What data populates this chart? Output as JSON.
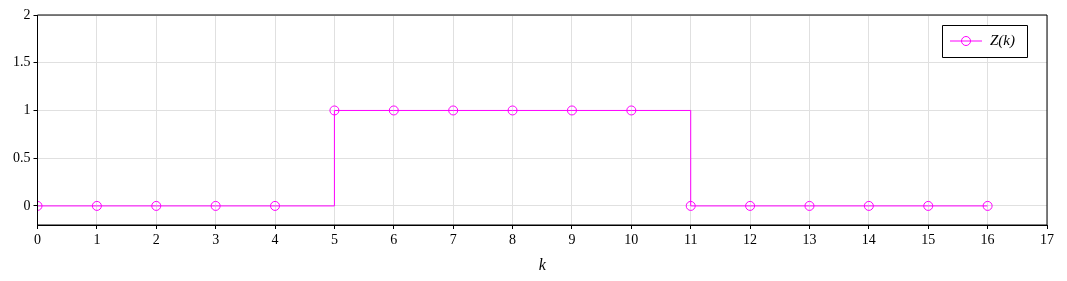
{
  "chart_data": {
    "type": "step",
    "xlabel": "k",
    "x": [
      0,
      1,
      2,
      3,
      4,
      5,
      6,
      7,
      8,
      9,
      10,
      11,
      12,
      13,
      14,
      15,
      16
    ],
    "series": [
      {
        "name": "Z(k)",
        "color": "#ff00ff",
        "values": [
          0,
          0,
          0,
          0,
          0,
          1,
          1,
          1,
          1,
          1,
          1,
          0,
          0,
          0,
          0,
          0,
          0
        ]
      }
    ],
    "xlim": [
      0,
      17
    ],
    "xticks": [
      0,
      1,
      2,
      3,
      4,
      5,
      6,
      7,
      8,
      9,
      10,
      11,
      12,
      13,
      14,
      15,
      16,
      17
    ],
    "ylim": [
      -0.2,
      2
    ],
    "yticks": [
      0,
      0.5,
      1,
      1.5,
      2
    ],
    "grid": true,
    "legend": "top right",
    "marker": "circle",
    "line_style": "solid"
  }
}
